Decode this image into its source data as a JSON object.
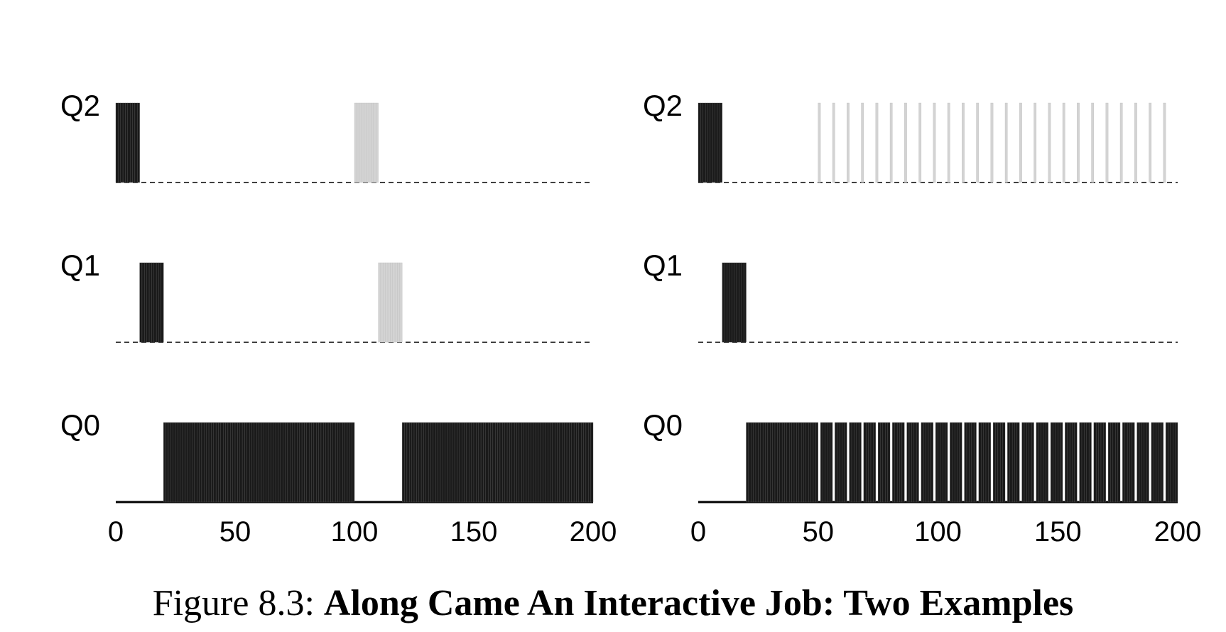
{
  "chart_data": [
    {
      "type": "bar",
      "queues": [
        "Q2",
        "Q1",
        "Q0"
      ],
      "x_ticks": [
        0,
        50,
        100,
        150,
        200
      ],
      "xlim": [
        0,
        200
      ],
      "slice": 1,
      "series": [
        {
          "color": "#1a1a1a",
          "segments": [
            {
              "queue": "Q2",
              "start": 0,
              "end": 10
            },
            {
              "queue": "Q1",
              "start": 10,
              "end": 20
            },
            {
              "queue": "Q0",
              "start": 20,
              "end": 100
            },
            {
              "queue": "Q0",
              "start": 120,
              "end": 200
            }
          ]
        },
        {
          "color": "#d3d3d3",
          "segments": [
            {
              "queue": "Q2",
              "start": 100,
              "end": 110
            },
            {
              "queue": "Q1",
              "start": 110,
              "end": 120
            }
          ]
        }
      ]
    },
    {
      "type": "bar",
      "queues": [
        "Q2",
        "Q1",
        "Q0"
      ],
      "x_ticks": [
        0,
        50,
        100,
        150,
        200
      ],
      "xlim": [
        0,
        200
      ],
      "slice": 1,
      "series": [
        {
          "color": "#1a1a1a",
          "segments": [
            {
              "queue": "Q2",
              "start": 0,
              "end": 10
            },
            {
              "queue": "Q1",
              "start": 10,
              "end": 20
            },
            {
              "queue": "Q0",
              "start": 20,
              "end": 50
            },
            {
              "queue": "Q0",
              "start": 51,
              "end": 56
            },
            {
              "queue": "Q0",
              "start": 57,
              "end": 62
            },
            {
              "queue": "Q0",
              "start": 63,
              "end": 68
            },
            {
              "queue": "Q0",
              "start": 69,
              "end": 74
            },
            {
              "queue": "Q0",
              "start": 75,
              "end": 80
            },
            {
              "queue": "Q0",
              "start": 81,
              "end": 86
            },
            {
              "queue": "Q0",
              "start": 87,
              "end": 92
            },
            {
              "queue": "Q0",
              "start": 93,
              "end": 98
            },
            {
              "queue": "Q0",
              "start": 99,
              "end": 104
            },
            {
              "queue": "Q0",
              "start": 105,
              "end": 110
            },
            {
              "queue": "Q0",
              "start": 111,
              "end": 116
            },
            {
              "queue": "Q0",
              "start": 117,
              "end": 122
            },
            {
              "queue": "Q0",
              "start": 123,
              "end": 128
            },
            {
              "queue": "Q0",
              "start": 129,
              "end": 134
            },
            {
              "queue": "Q0",
              "start": 135,
              "end": 140
            },
            {
              "queue": "Q0",
              "start": 141,
              "end": 146
            },
            {
              "queue": "Q0",
              "start": 147,
              "end": 152
            },
            {
              "queue": "Q0",
              "start": 153,
              "end": 158
            },
            {
              "queue": "Q0",
              "start": 159,
              "end": 164
            },
            {
              "queue": "Q0",
              "start": 165,
              "end": 170
            },
            {
              "queue": "Q0",
              "start": 171,
              "end": 176
            },
            {
              "queue": "Q0",
              "start": 177,
              "end": 182
            },
            {
              "queue": "Q0",
              "start": 183,
              "end": 188
            },
            {
              "queue": "Q0",
              "start": 189,
              "end": 194
            },
            {
              "queue": "Q0",
              "start": 195,
              "end": 200
            }
          ]
        },
        {
          "color": "#d3d3d3",
          "segments": [
            {
              "queue": "Q2",
              "start": 50,
              "end": 51
            },
            {
              "queue": "Q2",
              "start": 56,
              "end": 57
            },
            {
              "queue": "Q2",
              "start": 62,
              "end": 63
            },
            {
              "queue": "Q2",
              "start": 68,
              "end": 69
            },
            {
              "queue": "Q2",
              "start": 74,
              "end": 75
            },
            {
              "queue": "Q2",
              "start": 80,
              "end": 81
            },
            {
              "queue": "Q2",
              "start": 86,
              "end": 87
            },
            {
              "queue": "Q2",
              "start": 92,
              "end": 93
            },
            {
              "queue": "Q2",
              "start": 98,
              "end": 99
            },
            {
              "queue": "Q2",
              "start": 104,
              "end": 105
            },
            {
              "queue": "Q2",
              "start": 110,
              "end": 111
            },
            {
              "queue": "Q2",
              "start": 116,
              "end": 117
            },
            {
              "queue": "Q2",
              "start": 122,
              "end": 123
            },
            {
              "queue": "Q2",
              "start": 128,
              "end": 129
            },
            {
              "queue": "Q2",
              "start": 134,
              "end": 135
            },
            {
              "queue": "Q2",
              "start": 140,
              "end": 141
            },
            {
              "queue": "Q2",
              "start": 146,
              "end": 147
            },
            {
              "queue": "Q2",
              "start": 152,
              "end": 153
            },
            {
              "queue": "Q2",
              "start": 158,
              "end": 159
            },
            {
              "queue": "Q2",
              "start": 164,
              "end": 165
            },
            {
              "queue": "Q2",
              "start": 170,
              "end": 171
            },
            {
              "queue": "Q2",
              "start": 176,
              "end": 177
            },
            {
              "queue": "Q2",
              "start": 182,
              "end": 183
            },
            {
              "queue": "Q2",
              "start": 188,
              "end": 189
            },
            {
              "queue": "Q2",
              "start": 194,
              "end": 195
            }
          ]
        }
      ]
    }
  ],
  "caption": {
    "prefix": "Figure 8.3: ",
    "title": "Along Came An Interactive Job: Two Examples"
  }
}
